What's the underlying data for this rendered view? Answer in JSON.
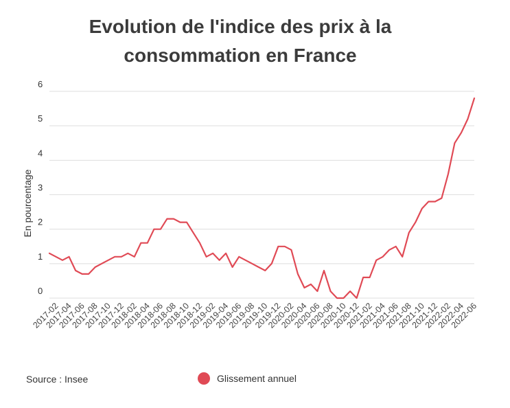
{
  "title_line1": "Evolution de l'indice des prix à la",
  "title_line2": "consommation en France",
  "source": "Source : Insee",
  "colors": {
    "line": "#e04a55",
    "grid": "#dedede",
    "text": "#333333",
    "axis": "#444444"
  },
  "chart_data": {
    "type": "line",
    "title": "Evolution de l'indice des prix à la consommation en France",
    "xlabel": "",
    "ylabel": "En pourcentage",
    "ylim": [
      0,
      6
    ],
    "yticks": [
      0,
      1,
      2,
      3,
      4,
      5,
      6
    ],
    "grid": true,
    "legend_position": "bottom",
    "xtick_labels": [
      "2017-02",
      "2017-04",
      "2017-06",
      "2017-08",
      "2017-10",
      "2017-12",
      "2018-02",
      "2018-04",
      "2018-06",
      "2018-08",
      "2018-10",
      "2018-12",
      "2019-02",
      "2019-04",
      "2019-06",
      "2019-08",
      "2019-10",
      "2019-12",
      "2020-02",
      "2020-04",
      "2020-06",
      "2020-08",
      "2020-10",
      "2020-12",
      "2021-02",
      "2021-04",
      "2021-06",
      "2021-08",
      "2021-10",
      "2021-12",
      "2022-02",
      "2022-04",
      "2022-06"
    ],
    "x": [
      "2017-01",
      "2017-02",
      "2017-03",
      "2017-04",
      "2017-05",
      "2017-06",
      "2017-07",
      "2017-08",
      "2017-09",
      "2017-10",
      "2017-11",
      "2017-12",
      "2018-01",
      "2018-02",
      "2018-03",
      "2018-04",
      "2018-05",
      "2018-06",
      "2018-07",
      "2018-08",
      "2018-09",
      "2018-10",
      "2018-11",
      "2018-12",
      "2019-01",
      "2019-02",
      "2019-03",
      "2019-04",
      "2019-05",
      "2019-06",
      "2019-07",
      "2019-08",
      "2019-09",
      "2019-10",
      "2019-11",
      "2019-12",
      "2020-01",
      "2020-02",
      "2020-03",
      "2020-04",
      "2020-05",
      "2020-06",
      "2020-07",
      "2020-08",
      "2020-09",
      "2020-10",
      "2020-11",
      "2020-12",
      "2021-01",
      "2021-02",
      "2021-03",
      "2021-04",
      "2021-05",
      "2021-06",
      "2021-07",
      "2021-08",
      "2021-09",
      "2021-10",
      "2021-11",
      "2021-12",
      "2022-01",
      "2022-02",
      "2022-03",
      "2022-04",
      "2022-05",
      "2022-06"
    ],
    "series": [
      {
        "name": "Glissement annuel",
        "color": "#e04a55",
        "values": [
          1.3,
          1.2,
          1.1,
          1.2,
          0.8,
          0.7,
          0.7,
          0.9,
          1.0,
          1.1,
          1.2,
          1.2,
          1.3,
          1.2,
          1.6,
          1.6,
          2.0,
          2.0,
          2.3,
          2.3,
          2.2,
          2.2,
          1.9,
          1.6,
          1.2,
          1.3,
          1.1,
          1.3,
          0.9,
          1.2,
          1.1,
          1.0,
          0.9,
          0.8,
          1.0,
          1.5,
          1.5,
          1.4,
          0.7,
          0.3,
          0.4,
          0.2,
          0.8,
          0.2,
          0.0,
          0.0,
          0.2,
          0.0,
          0.6,
          0.6,
          1.1,
          1.2,
          1.4,
          1.5,
          1.2,
          1.9,
          2.2,
          2.6,
          2.8,
          2.8,
          2.9,
          3.6,
          4.5,
          4.8,
          5.2,
          5.8
        ]
      }
    ]
  }
}
